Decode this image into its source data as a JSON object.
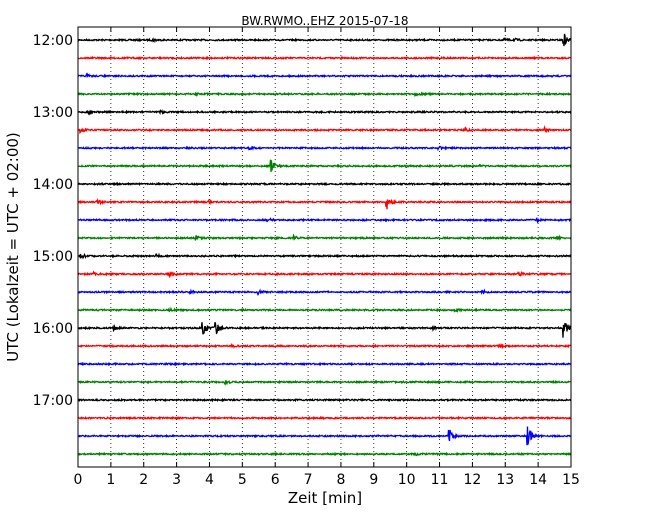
{
  "chart_data": {
    "type": "line",
    "title": "BW.RWMO..EHZ 2015-07-18",
    "xlabel": "Zeit  [min]",
    "ylabel": "UTC (Lokalzeit = UTC + 02:00)",
    "xlim": [
      0,
      15
    ],
    "x_ticks": [
      0,
      1,
      2,
      3,
      4,
      5,
      6,
      7,
      8,
      9,
      10,
      11,
      12,
      13,
      14,
      15
    ],
    "x_tick_labels": [
      "0",
      "1",
      "2",
      "3",
      "4",
      "5",
      "6",
      "7",
      "8",
      "9",
      "10",
      "11",
      "12",
      "13",
      "14",
      "15"
    ],
    "y_tick_labels": [
      "12:00",
      "13:00",
      "14:00",
      "15:00",
      "16:00",
      "17:00"
    ],
    "grid": "vertical dotted",
    "colors": [
      "#000000",
      "#ff0000",
      "#0000ff",
      "#008000"
    ],
    "traces": [
      {
        "start": "12:00",
        "color": "#000000",
        "events": [
          {
            "t": 2.3,
            "amp": 1.5
          },
          {
            "t": 13.0,
            "amp": 1.5
          },
          {
            "t": 13.3,
            "amp": 1.2
          },
          {
            "t": 14.8,
            "amp": 6
          }
        ]
      },
      {
        "start": "12:15",
        "color": "#ff0000",
        "events": []
      },
      {
        "start": "12:30",
        "color": "#0000ff",
        "events": [
          {
            "t": 0.3,
            "amp": 1.2
          }
        ]
      },
      {
        "start": "12:45",
        "color": "#008000",
        "events": [
          {
            "t": 3.6,
            "amp": 1.2
          },
          {
            "t": 10.3,
            "amp": 1.2
          }
        ]
      },
      {
        "start": "13:00",
        "color": "#000000",
        "events": [
          {
            "t": 0.3,
            "amp": 1.2
          },
          {
            "t": 2.5,
            "amp": 1.2
          }
        ]
      },
      {
        "start": "13:15",
        "color": "#ff0000",
        "events": [
          {
            "t": 0.1,
            "amp": 2
          },
          {
            "t": 11.8,
            "amp": 1.5
          },
          {
            "t": 14.2,
            "amp": 2
          }
        ]
      },
      {
        "start": "13:30",
        "color": "#0000ff",
        "events": [
          {
            "t": 5.2,
            "amp": 1.5
          },
          {
            "t": 11.0,
            "amp": 1.2
          }
        ]
      },
      {
        "start": "13:45",
        "color": "#008000",
        "events": [
          {
            "t": 5.9,
            "amp": 6
          },
          {
            "t": 12.2,
            "amp": 1.2
          }
        ]
      },
      {
        "start": "14:00",
        "color": "#000000",
        "events": []
      },
      {
        "start": "14:15",
        "color": "#ff0000",
        "events": [
          {
            "t": 0.6,
            "amp": 2.5
          },
          {
            "t": 4.0,
            "amp": 1.5
          },
          {
            "t": 9.4,
            "amp": 7
          }
        ]
      },
      {
        "start": "14:30",
        "color": "#0000ff",
        "events": [
          {
            "t": 5.8,
            "amp": 2
          },
          {
            "t": 14.0,
            "amp": 1.2
          }
        ]
      },
      {
        "start": "14:45",
        "color": "#008000",
        "events": [
          {
            "t": 3.6,
            "amp": 2
          },
          {
            "t": 6.6,
            "amp": 2
          },
          {
            "t": 14.6,
            "amp": 1.2
          }
        ]
      },
      {
        "start": "15:00",
        "color": "#000000",
        "events": [
          {
            "t": 0.1,
            "amp": 2.5
          },
          {
            "t": 2.4,
            "amp": 1.2
          }
        ]
      },
      {
        "start": "15:15",
        "color": "#ff0000",
        "events": [
          {
            "t": 0.5,
            "amp": 1.5
          },
          {
            "t": 2.8,
            "amp": 2
          },
          {
            "t": 13.4,
            "amp": 2.5
          }
        ]
      },
      {
        "start": "15:30",
        "color": "#0000ff",
        "events": [
          {
            "t": 3.4,
            "amp": 1.5
          },
          {
            "t": 5.5,
            "amp": 2
          },
          {
            "t": 12.3,
            "amp": 1.5
          }
        ]
      },
      {
        "start": "15:45",
        "color": "#008000",
        "events": [
          {
            "t": 2.8,
            "amp": 1.2
          },
          {
            "t": 11.5,
            "amp": 1.2
          }
        ]
      },
      {
        "start": "16:00",
        "color": "#000000",
        "events": [
          {
            "t": 1.1,
            "amp": 2.5
          },
          {
            "t": 3.8,
            "amp": 9
          },
          {
            "t": 4.2,
            "amp": 6
          },
          {
            "t": 10.8,
            "amp": 1.5
          },
          {
            "t": 14.8,
            "amp": 9
          }
        ]
      },
      {
        "start": "16:15",
        "color": "#ff0000",
        "events": [
          {
            "t": 4.7,
            "amp": 1.2
          },
          {
            "t": 12.8,
            "amp": 1.2
          }
        ]
      },
      {
        "start": "16:30",
        "color": "#0000ff",
        "events": []
      },
      {
        "start": "16:45",
        "color": "#008000",
        "events": [
          {
            "t": 4.5,
            "amp": 1.5
          }
        ]
      },
      {
        "start": "17:00",
        "color": "#000000",
        "events": []
      },
      {
        "start": "17:15",
        "color": "#ff0000",
        "events": []
      },
      {
        "start": "17:30",
        "color": "#0000ff",
        "events": [
          {
            "t": 11.3,
            "amp": 9
          },
          {
            "t": 13.7,
            "amp": 9
          }
        ]
      },
      {
        "start": "17:45",
        "color": "#008000",
        "events": [
          {
            "t": 10.3,
            "amp": 1.2
          }
        ]
      }
    ]
  }
}
